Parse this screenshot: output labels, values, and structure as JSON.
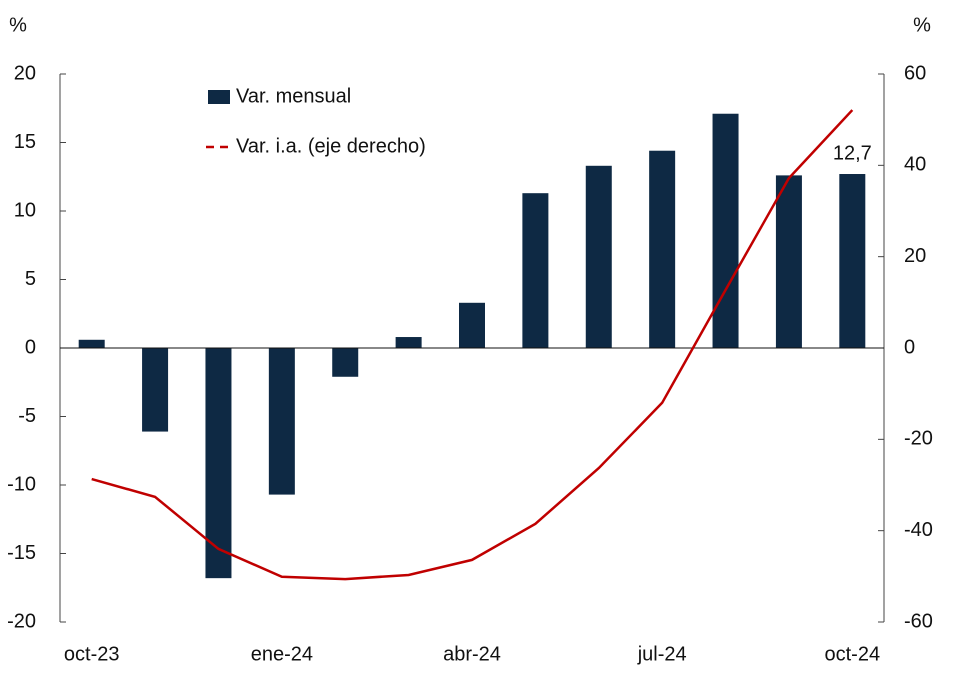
{
  "chart_data": {
    "type": "bar",
    "y_label": "%",
    "y2_label": "%",
    "categories": [
      "oct-23",
      null,
      null,
      "ene-24",
      null,
      null,
      "abr-24",
      null,
      null,
      "jul-24",
      null,
      null,
      "oct-24"
    ],
    "series": [
      {
        "name": "Var. mensual",
        "color": "#0e2944",
        "type": "bar",
        "values": [
          0.6,
          -6.1,
          -16.8,
          -10.7,
          -2.1,
          0.8,
          3.3,
          11.3,
          13.3,
          14.4,
          17.1,
          12.6,
          12.7
        ],
        "value_labels": [
          null,
          null,
          null,
          null,
          null,
          null,
          null,
          null,
          null,
          null,
          null,
          null,
          "12,7"
        ]
      },
      {
        "name": "Var. i.a. (eje derecho)",
        "color": "#c00000",
        "type": "line",
        "axis": "y2",
        "values": [
          -28.7,
          -32.6,
          -44.0,
          -50.1,
          -50.6,
          -49.7,
          -46.4,
          -38.5,
          -26.3,
          -12.0,
          12.7,
          37.2,
          52.1
        ]
      }
    ],
    "ylim": [
      -20,
      20
    ],
    "yticks": [
      -20,
      -15,
      -10,
      -5,
      0,
      5,
      10,
      15,
      20
    ],
    "y2lim": [
      -60,
      60
    ],
    "y2ticks": [
      -60,
      -40,
      -20,
      0,
      20,
      40,
      60
    ]
  }
}
